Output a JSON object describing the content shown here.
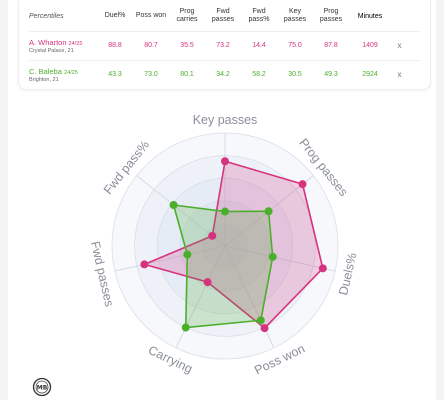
{
  "table": {
    "header": {
      "percentiles": "Percentiles",
      "columns": [
        "Duel%",
        "Poss won",
        "Prog carries",
        "Fwd passes",
        "Fwd pass%",
        "Key passes",
        "Prog passes"
      ],
      "minutes": "Minutes"
    },
    "players": [
      {
        "name": "A. Wharton",
        "season": "24/25",
        "club": "Crystal Palace, 21",
        "color": "#d6337f",
        "values": [
          "88.8",
          "80.7",
          "35.5",
          "73.2",
          "14.4",
          "75.0",
          "87.8"
        ],
        "minutes": "1409",
        "remove": "x"
      },
      {
        "name": "C. Baleba",
        "season": "24/25",
        "club": "Brighton, 21",
        "color": "#4caf2c",
        "values": [
          "43.3",
          "73.0",
          "80.1",
          "34.2",
          "58.2",
          "30.5",
          "49.3"
        ],
        "minutes": "2924",
        "remove": "x"
      }
    ]
  },
  "chart_data": {
    "type": "radar",
    "axes": [
      "Key passes",
      "Prog passes",
      "Duels%",
      "Poss won",
      "Carrying",
      "Fwd passes",
      "Fwd pass%"
    ],
    "range": [
      0,
      100
    ],
    "series": [
      {
        "name": "A. Wharton",
        "color": "#d6337f",
        "values": [
          75.0,
          87.8,
          88.8,
          80.7,
          35.5,
          73.2,
          14.4
        ]
      },
      {
        "name": "C. Baleba",
        "color": "#4caf2c",
        "values": [
          30.5,
          49.3,
          43.3,
          73.0,
          80.1,
          34.2,
          58.2
        ]
      }
    ],
    "rings": 5,
    "grid": true
  },
  "logo_text": "MB",
  "colors": {
    "pink": "#d6337f",
    "green": "#4caf2c"
  }
}
